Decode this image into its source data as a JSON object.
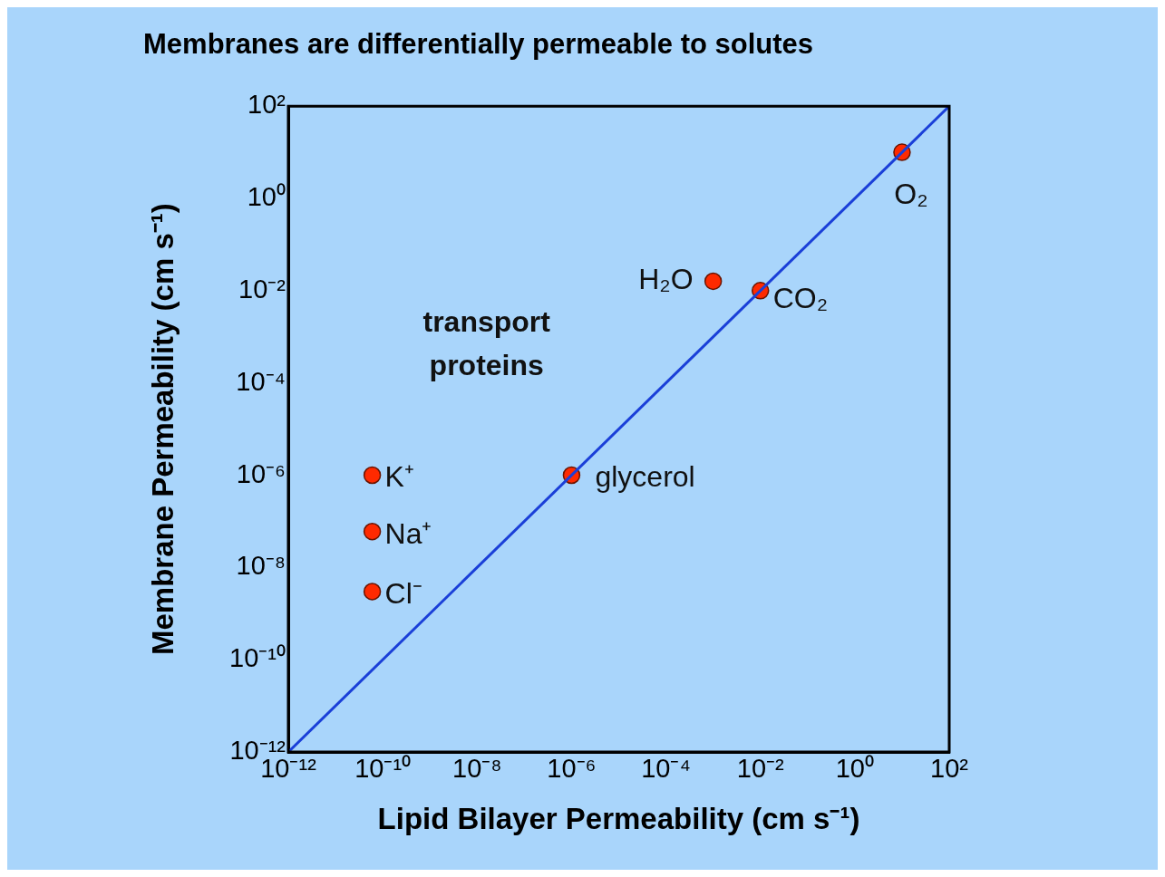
{
  "chart_data": {
    "type": "scatter",
    "title": "Membranes are differentially permeable to solutes",
    "xlabel": "Lipid Bilayer Permeability (cm s⁻¹)",
    "ylabel": "Membrane Permeability (cm s⁻¹)",
    "log": "xy",
    "grid": false,
    "legend": false,
    "marker": "circle",
    "xlim": [
      1e-12,
      100
    ],
    "ylim": [
      1e-12,
      100
    ],
    "xticks": [
      {
        "value": 1e-12,
        "label": "10⁻¹²"
      },
      {
        "value": 1e-10,
        "label": "10⁻¹⁰"
      },
      {
        "value": 1e-08,
        "label": "10⁻⁸"
      },
      {
        "value": 1e-06,
        "label": "10⁻⁶"
      },
      {
        "value": 0.0001,
        "label": "10⁻⁴"
      },
      {
        "value": 0.01,
        "label": "10⁻²"
      },
      {
        "value": 1,
        "label": "10⁰"
      },
      {
        "value": 100,
        "label": "10²"
      }
    ],
    "yticks": [
      {
        "value": 1e-12,
        "label": "10⁻¹²"
      },
      {
        "value": 1e-10,
        "label": "10⁻¹⁰"
      },
      {
        "value": 1e-08,
        "label": "10⁻⁸"
      },
      {
        "value": 1e-06,
        "label": "10⁻⁶"
      },
      {
        "value": 0.0001,
        "label": "10⁻⁴"
      },
      {
        "value": 0.01,
        "label": "10⁻²"
      },
      {
        "value": 1,
        "label": "10⁰"
      },
      {
        "value": 100,
        "label": "10²"
      }
    ],
    "series": [
      {
        "type": "line",
        "color": "#1a3fd8",
        "line_style": "solid",
        "marker": "none",
        "x": [
          1e-12,
          100
        ],
        "values": [
          1e-12,
          100
        ]
      },
      {
        "type": "scatter",
        "color": "#ff2a00",
        "x": [
          10,
          0.01,
          0.001,
          1e-06,
          6e-11,
          6e-11,
          6e-11
        ],
        "values": [
          10,
          0.01,
          0.016,
          1e-06,
          1e-06,
          6e-08,
          3e-09
        ]
      }
    ],
    "annotations": [
      {
        "text": "O₂",
        "x": 10,
        "y": 10
      },
      {
        "text": "CO₂",
        "x": 0.01,
        "y": 0.01
      },
      {
        "text": "H₂O",
        "x": 0.001,
        "y": 0.016
      },
      {
        "text": "glycerol",
        "x": 1e-06,
        "y": 1e-06
      },
      {
        "text": "K⁺",
        "x": 6e-11,
        "y": 1e-06
      },
      {
        "text": "Na⁺",
        "x": 6e-11,
        "y": 6e-08
      },
      {
        "text": "Cl⁻",
        "x": 6e-11,
        "y": 3e-09
      },
      "transport proteins"
    ]
  }
}
